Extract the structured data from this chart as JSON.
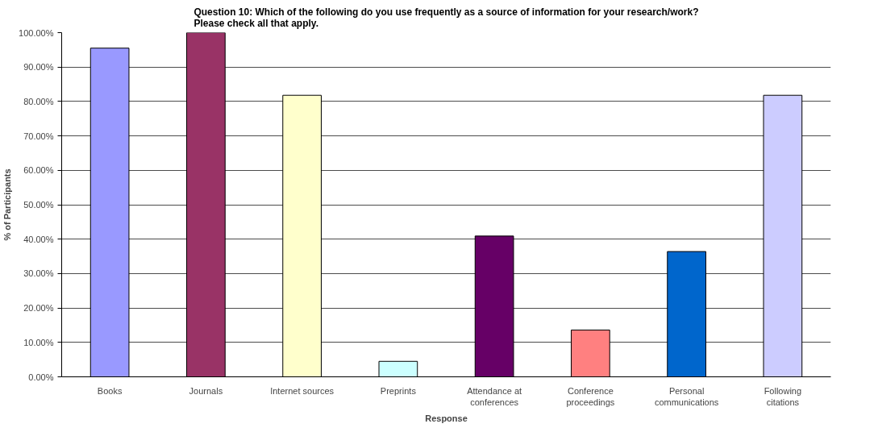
{
  "chart_data": {
    "type": "bar",
    "title": "Question 10: Which of the following do you use frequently as a source of information for your research/work?\nPlease check all that apply.",
    "xlabel": "Response",
    "ylabel": "% of Participants",
    "categories": [
      "Books",
      "Journals",
      "Internet sources",
      "Preprints",
      "Attendance at conferences",
      "Conference proceedings",
      "Personal communications",
      "Following citations"
    ],
    "values": [
      95.5,
      100,
      81.8,
      4.5,
      40.9,
      13.6,
      36.4,
      81.8
    ],
    "colors": [
      "#9999ff",
      "#993366",
      "#ffffcc",
      "#ccffff",
      "#660066",
      "#ff8080",
      "#0066cc",
      "#ccccff"
    ],
    "ylim": [
      0,
      100
    ],
    "yticks": [
      {
        "value": 0,
        "label": "0.00%"
      },
      {
        "value": 10,
        "label": "10.00%"
      },
      {
        "value": 20,
        "label": "20.00%"
      },
      {
        "value": 30,
        "label": "30.00%"
      },
      {
        "value": 40,
        "label": "40.00%"
      },
      {
        "value": 50,
        "label": "50.00%"
      },
      {
        "value": 60,
        "label": "60.00%"
      },
      {
        "value": 70,
        "label": "70.00%"
      },
      {
        "value": 80,
        "label": "80.00%"
      },
      {
        "value": 90,
        "label": "90.00%"
      },
      {
        "value": 100,
        "label": "100.00%"
      }
    ],
    "grid": "y"
  }
}
